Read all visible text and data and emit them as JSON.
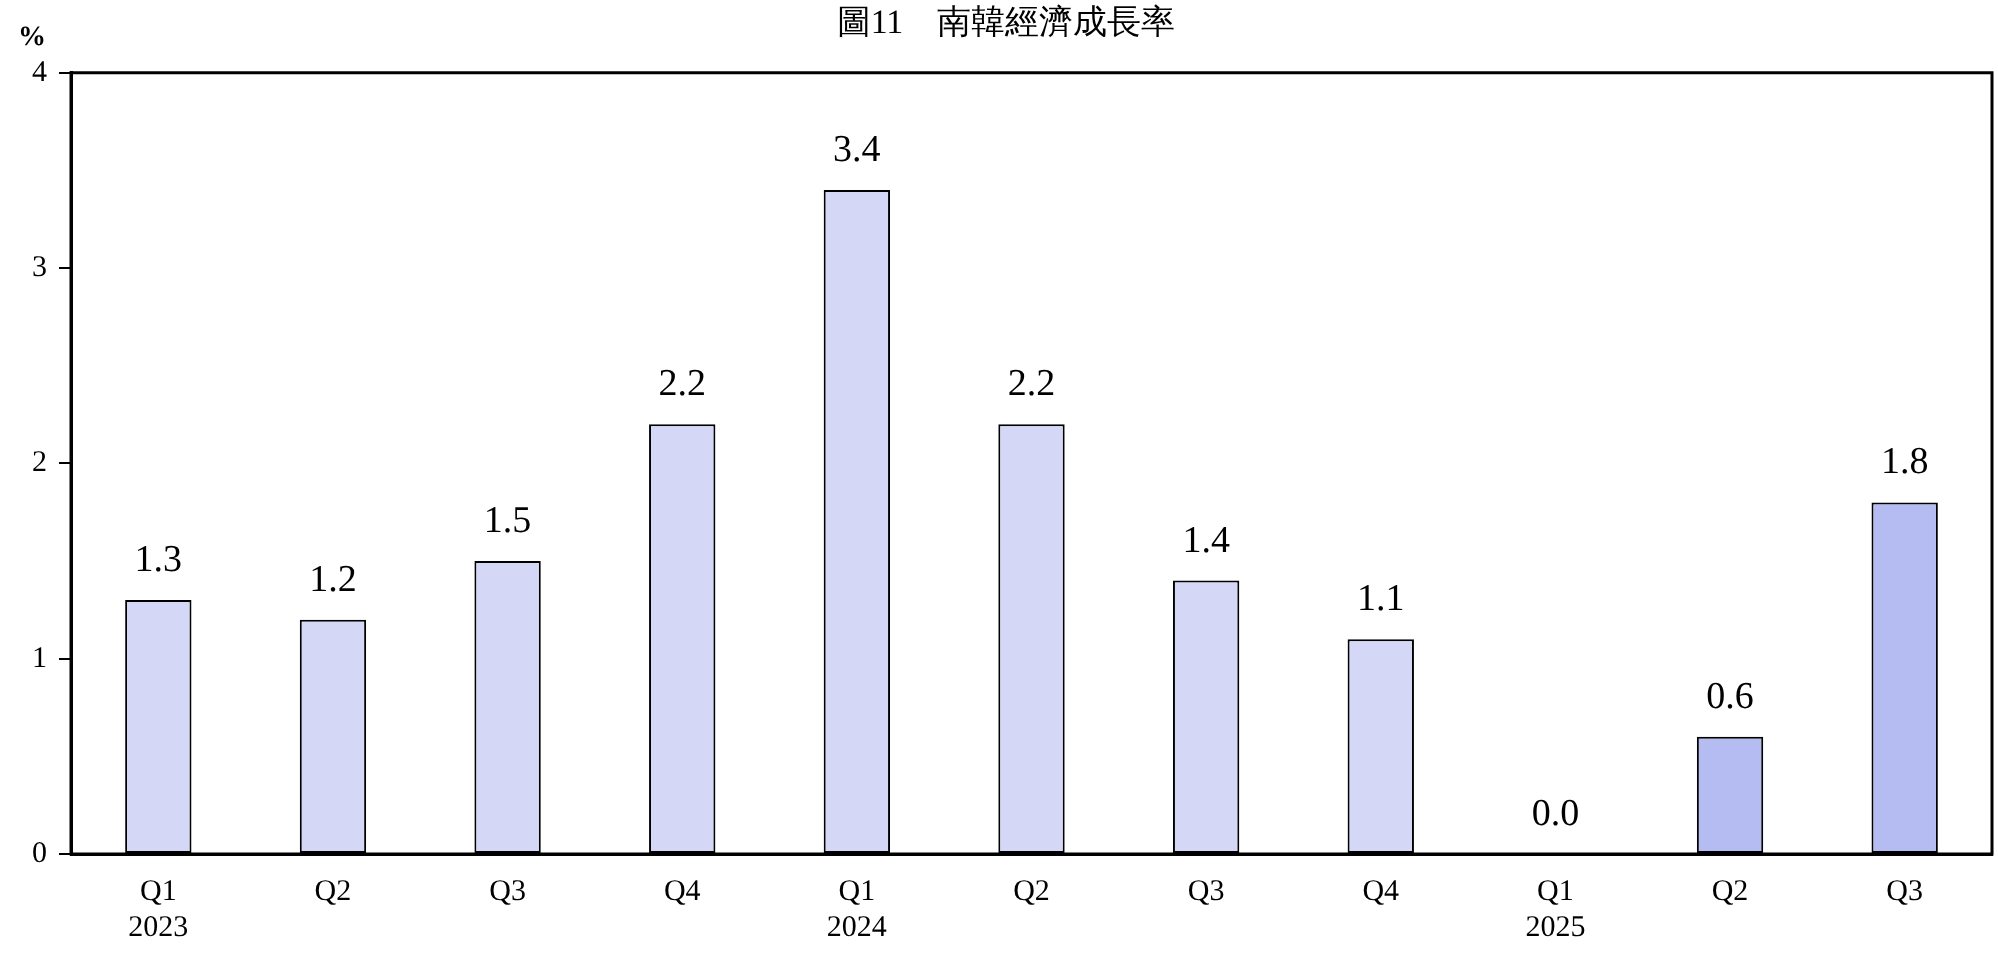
{
  "chart_data": {
    "type": "bar",
    "title": "圖11　南韓經濟成長率",
    "ylabel": "%",
    "categories": [
      "Q1\n2023",
      "Q2",
      "Q3",
      "Q4",
      "Q1\n2024",
      "Q2",
      "Q3",
      "Q4",
      "Q1\n2025",
      "Q2",
      "Q3"
    ],
    "values": [
      1.3,
      1.2,
      1.5,
      2.2,
      3.4,
      2.2,
      1.4,
      1.1,
      0.0,
      0.6,
      1.8
    ],
    "colors": [
      "#d4d8f6",
      "#d4d8f6",
      "#d4d8f6",
      "#d4d8f6",
      "#d4d8f6",
      "#d4d8f6",
      "#d4d8f6",
      "#d4d8f6",
      "#d4d8f6",
      "#b4bcf2",
      "#b4bcf2"
    ],
    "value_labels": [
      "1.3",
      "1.2",
      "1.5",
      "2.2",
      "3.4",
      "2.2",
      "1.4",
      "1.1",
      "0.0",
      "0.6",
      "1.8"
    ],
    "ylim": [
      0,
      4
    ],
    "yticks": [
      0,
      1,
      2,
      3,
      4
    ],
    "grid": false
  }
}
